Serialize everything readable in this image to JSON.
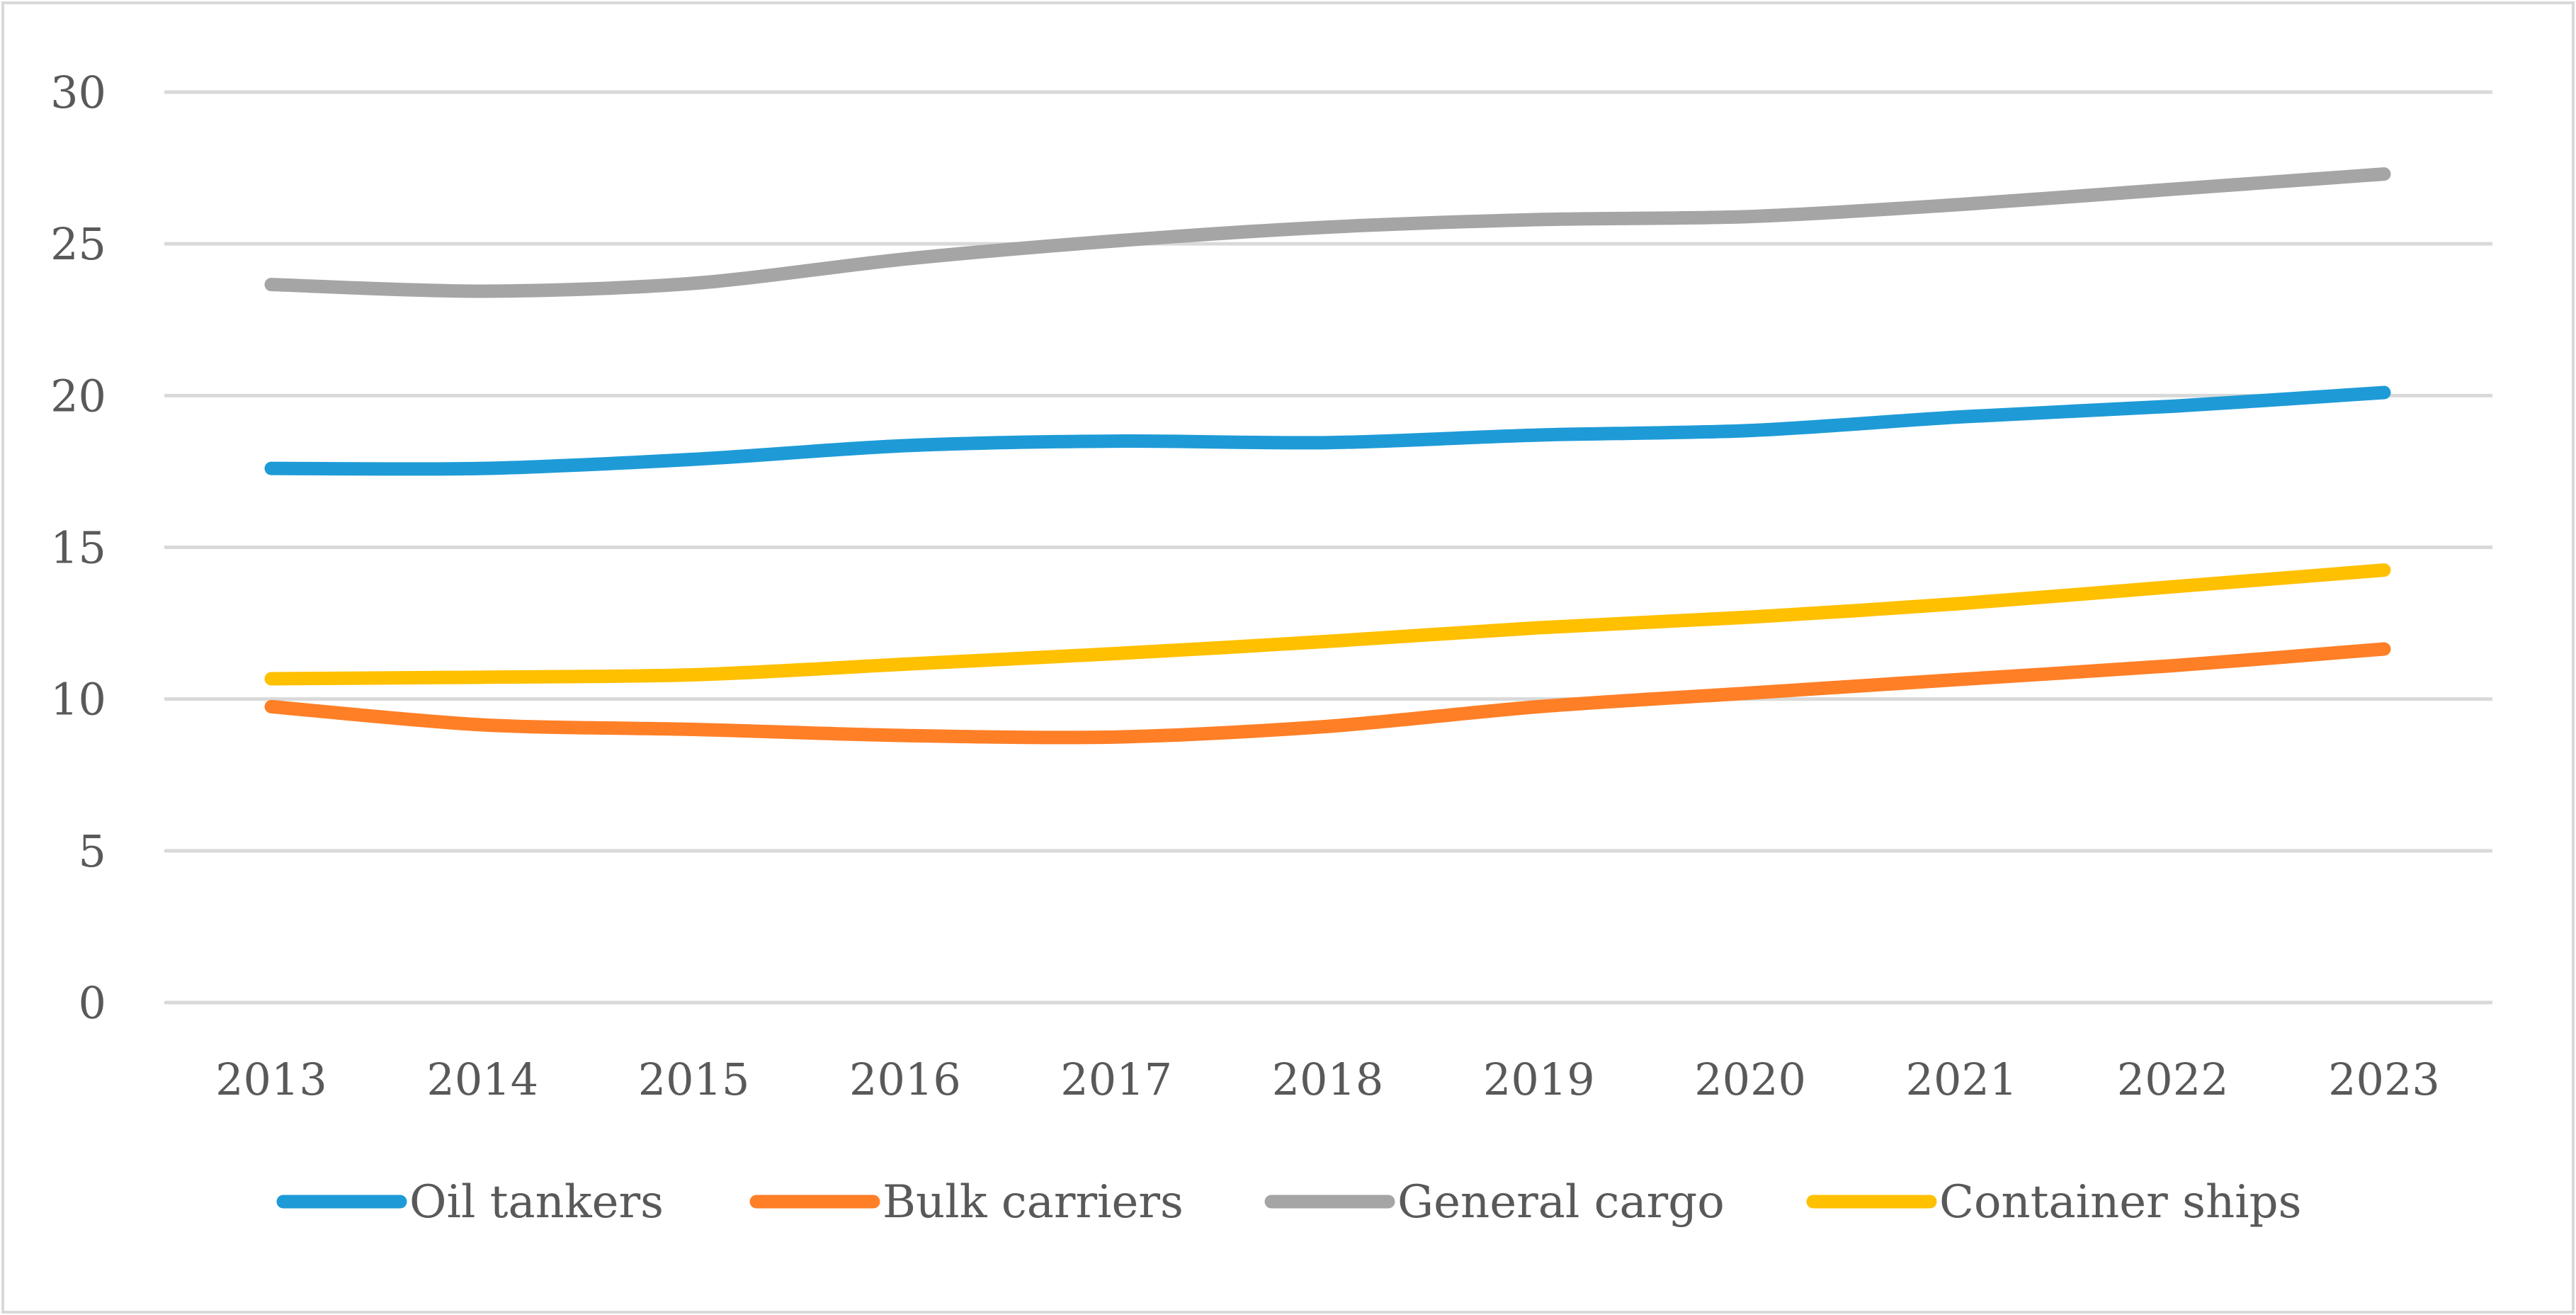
{
  "chart_data": {
    "type": "line",
    "title": "",
    "xlabel": "",
    "ylabel": "",
    "x": [
      "2013",
      "2014",
      "2015",
      "2016",
      "2017",
      "2018",
      "2019",
      "2020",
      "2021",
      "2022",
      "2023"
    ],
    "ylim": [
      0,
      30
    ],
    "yticks": [
      0,
      5,
      10,
      15,
      20,
      25,
      30
    ],
    "ytick_labels": [
      "0",
      "5",
      "10",
      "15",
      "20",
      "25",
      "30"
    ],
    "grid": true,
    "legend_position": "bottom",
    "series": [
      {
        "name": "Oil tankers",
        "color": "#1E9BD7",
        "values": [
          17.6,
          17.6,
          17.9,
          18.35,
          18.5,
          18.45,
          18.7,
          18.85,
          19.3,
          19.65,
          20.1
        ]
      },
      {
        "name": "Bulk carriers",
        "color": "#FF7F27",
        "values": [
          9.75,
          9.15,
          9.0,
          8.8,
          8.75,
          9.1,
          9.75,
          10.2,
          10.65,
          11.1,
          11.65
        ]
      },
      {
        "name": "General cargo",
        "color": "#A5A5A5",
        "values": [
          23.66,
          23.44,
          23.7,
          24.5,
          25.1,
          25.55,
          25.8,
          25.9,
          26.3,
          26.8,
          27.3
        ]
      },
      {
        "name": "Container ships",
        "color": "#FFC000",
        "values": [
          10.67,
          10.72,
          10.8,
          11.15,
          11.5,
          11.9,
          12.35,
          12.7,
          13.15,
          13.7,
          14.25
        ]
      }
    ]
  }
}
